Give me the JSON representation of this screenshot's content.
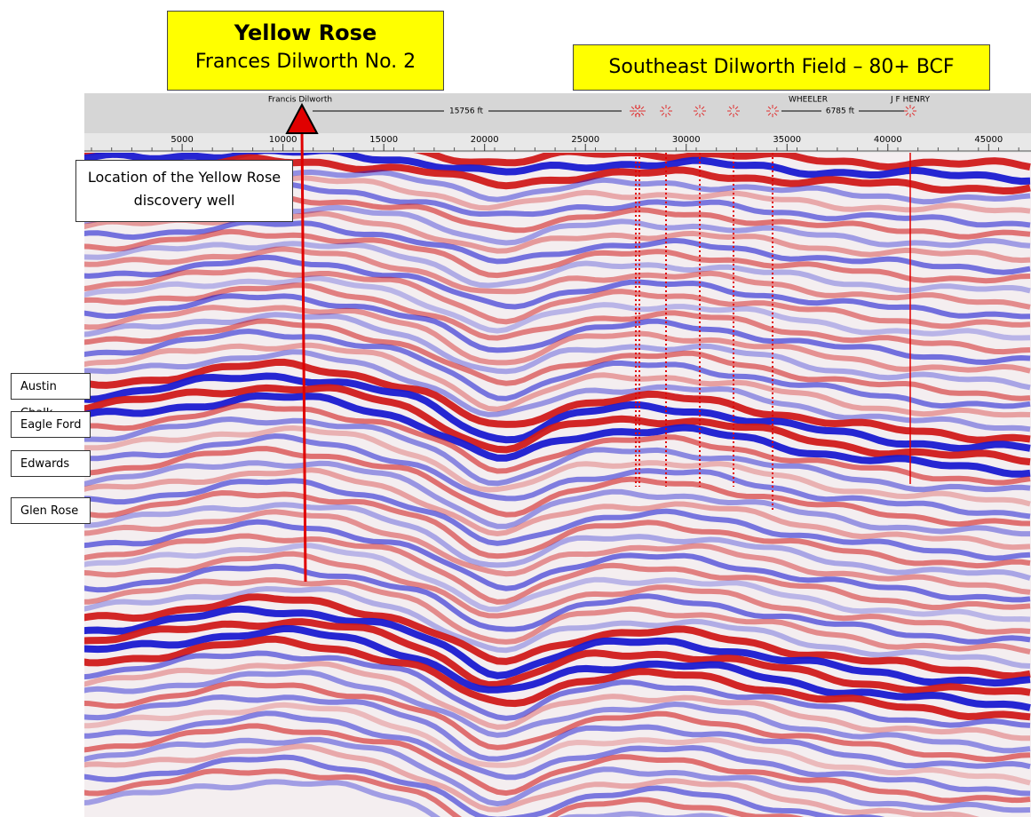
{
  "title_box": {
    "title": "Yellow Rose",
    "subtitle": "Frances Dilworth No. 2"
  },
  "field_box": "Southeast Dilworth Field – 80+ BCF",
  "callout": "Location of the Yellow Rose discovery well",
  "formations": [
    "Austin Chalk",
    "Eagle Ford",
    "Edwards",
    "Glen Rose"
  ],
  "well_header": {
    "discovery_well": "Francis Dilworth",
    "distance_1": "15756 ft",
    "wheeler": "WHEELER",
    "distance_2": "6785 ft",
    "henry": "J F HENRY"
  },
  "ruler": {
    "xlim": [
      150,
      47100
    ],
    "xticks": [
      5000,
      10000,
      15000,
      20000,
      25000,
      30000,
      35000,
      40000,
      45000
    ]
  }
}
